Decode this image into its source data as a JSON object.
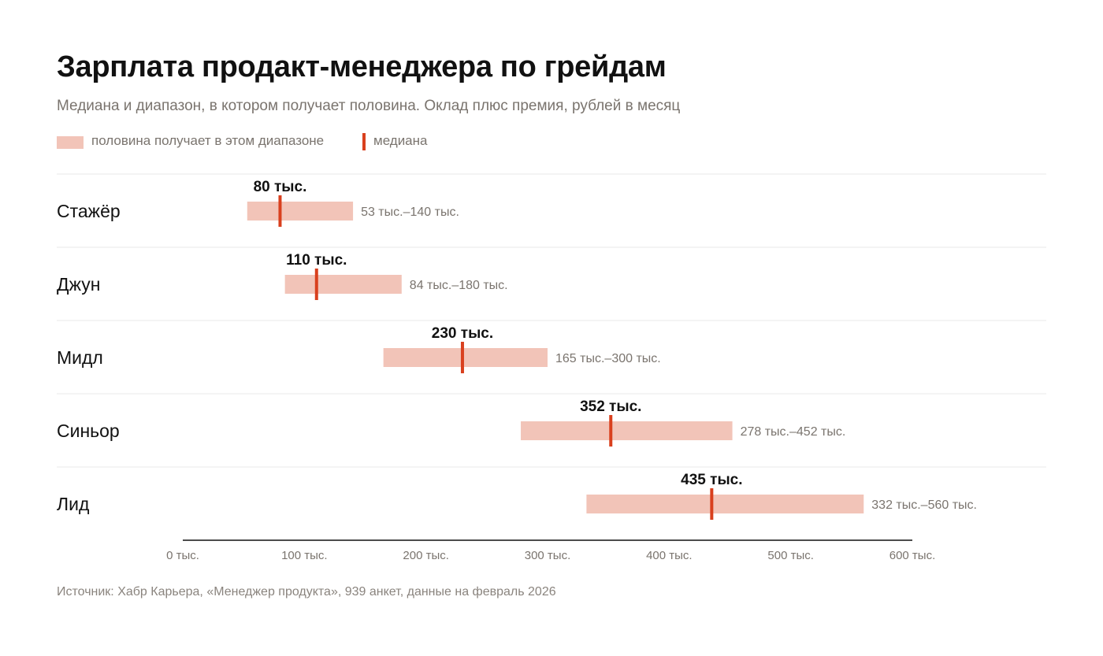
{
  "title": "Зарплата продакт-менеджера по грейдам",
  "subtitle": "Медиана и диапазон, в котором получает половина. Оклад плюс премия, рублей в месяц",
  "legend": {
    "range_label": "половина получает в этом диапазоне",
    "median_label": "медиана"
  },
  "colors": {
    "range": "#f2c4b8",
    "median": "#d9401e",
    "grid": "#e9e9e9",
    "axis": "#111111",
    "muted_text": "#7a746e"
  },
  "source": "Источник: Хабр Карьера, «Менеджер продукта», 939 анкет, данные на февраль 2026",
  "chart_data": {
    "type": "bar",
    "xlim": [
      0,
      600
    ],
    "ticks": [
      0,
      100,
      200,
      300,
      400,
      500,
      600
    ],
    "tick_labels": [
      "0 тыс.",
      "100 тыс.",
      "200 тыс.",
      "300 тыс.",
      "400 тыс.",
      "500 тыс.",
      "600 тыс."
    ],
    "grid": "horizontal row separators",
    "rows": [
      {
        "grade": "Стажёр",
        "low": 53,
        "high": 140,
        "median": 80,
        "median_label": "80 тыс.",
        "range_label": "53 тыс.–140 тыс."
      },
      {
        "grade": "Джун",
        "low": 84,
        "high": 180,
        "median": 110,
        "median_label": "110 тыс.",
        "range_label": "84 тыс.–180 тыс."
      },
      {
        "grade": "Мидл",
        "low": 165,
        "high": 300,
        "median": 230,
        "median_label": "230 тыс.",
        "range_label": "165 тыс.–300 тыс."
      },
      {
        "grade": "Синьор",
        "low": 278,
        "high": 452,
        "median": 352,
        "median_label": "352 тыс.",
        "range_label": "278 тыс.–452 тыс."
      },
      {
        "grade": "Лид",
        "low": 332,
        "high": 560,
        "median": 435,
        "median_label": "435 тыс.",
        "range_label": "332 тыс.–560 тыс."
      }
    ]
  }
}
